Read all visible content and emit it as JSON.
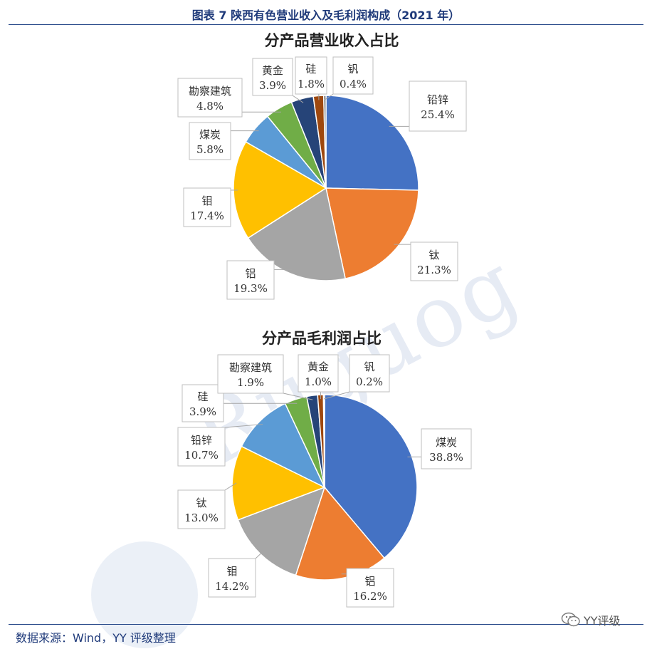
{
  "figure_title": "图表 7 陕西有色营业收入及毛利润构成（2021 年）",
  "source": "数据来源：Wind，YY 评级整理",
  "watermark": {
    "logo_text": "YY评级",
    "icon": "wechat-icon"
  },
  "chart_data": [
    {
      "type": "pie",
      "title": "分产品营业收入占比",
      "categories": [
        "铅锌",
        "钛",
        "铝",
        "钼",
        "煤炭",
        "勘察建筑",
        "黄金",
        "硅",
        "钒"
      ],
      "values": [
        25.4,
        21.3,
        19.3,
        17.4,
        5.8,
        4.8,
        3.9,
        1.8,
        0.4
      ],
      "labels": [
        "25.4%",
        "21.3%",
        "19.3%",
        "17.4%",
        "5.8%",
        "4.8%",
        "3.9%",
        "1.8%",
        "0.4%"
      ],
      "colors": [
        "#4472C4",
        "#ED7D31",
        "#A5A5A5",
        "#FFC000",
        "#5B9BD5",
        "#70AD47",
        "#264478",
        "#9E480E",
        "#636363"
      ]
    },
    {
      "type": "pie",
      "title": "分产品毛利润占比",
      "categories": [
        "煤炭",
        "铝",
        "钼",
        "钛",
        "铅锌",
        "硅",
        "勘察建筑",
        "黄金",
        "钒"
      ],
      "values": [
        38.8,
        16.2,
        14.2,
        13.0,
        10.7,
        3.9,
        1.9,
        1.0,
        0.2
      ],
      "labels": [
        "38.8%",
        "16.2%",
        "14.2%",
        "13.0%",
        "10.7%",
        "3.9%",
        "1.9%",
        "1.0%",
        "0.2%"
      ],
      "colors": [
        "#4472C4",
        "#ED7D31",
        "#A5A5A5",
        "#FFC000",
        "#5B9BD5",
        "#70AD47",
        "#264478",
        "#9E480E",
        "#636363"
      ]
    }
  ]
}
